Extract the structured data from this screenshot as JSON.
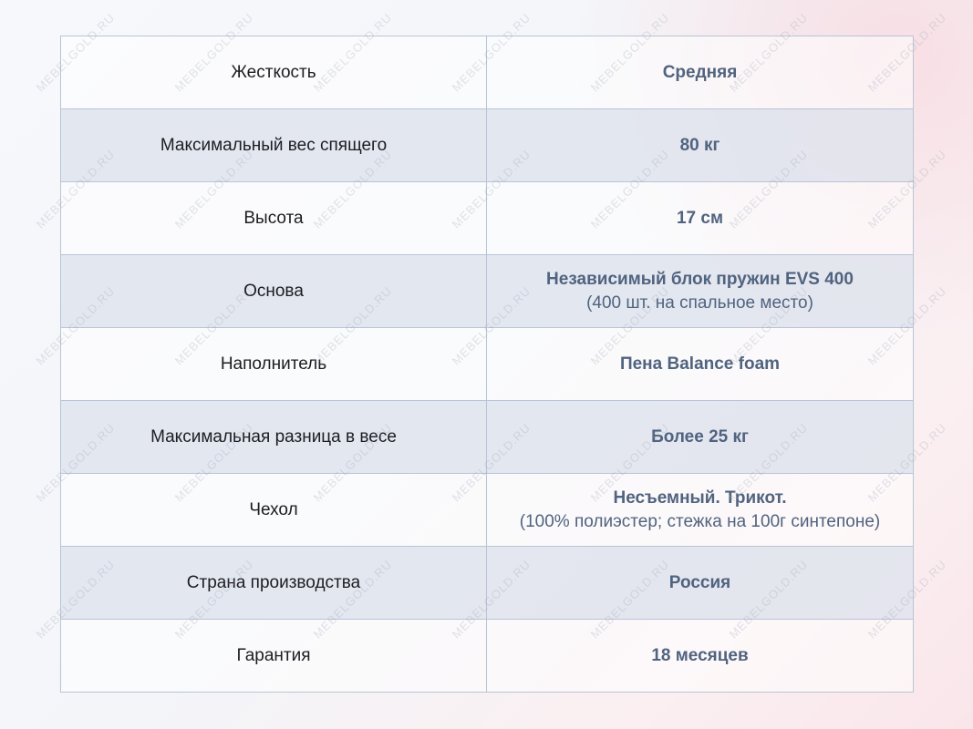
{
  "watermark": "MEBELGOLD.RU",
  "colors": {
    "value_text": "#50637f",
    "border": "#b9c4d6",
    "shaded_row": "#dee3ed"
  },
  "rows": [
    {
      "label": "Жесткость",
      "value": "Средняя",
      "sub": ""
    },
    {
      "label": "Максимальный вес спящего",
      "value": "80 кг",
      "sub": ""
    },
    {
      "label": "Высота",
      "value": "17 см",
      "sub": ""
    },
    {
      "label": "Основа",
      "value": "Независимый блок пружин EVS 400",
      "sub": "(400 шт. на спальное место)"
    },
    {
      "label": "Наполнитель",
      "value": "Пена Balance foam",
      "sub": ""
    },
    {
      "label": "Максимальная разница в весе",
      "value": "Более 25 кг",
      "sub": ""
    },
    {
      "label": "Чехол",
      "value": "Несъемный. Трикот.",
      "sub": "(100% полиэстер; стежка на 100г синтепоне)"
    },
    {
      "label": "Страна производства",
      "value": "Россия",
      "sub": ""
    },
    {
      "label": "Гарантия",
      "value": "18 месяцев",
      "sub": ""
    }
  ]
}
